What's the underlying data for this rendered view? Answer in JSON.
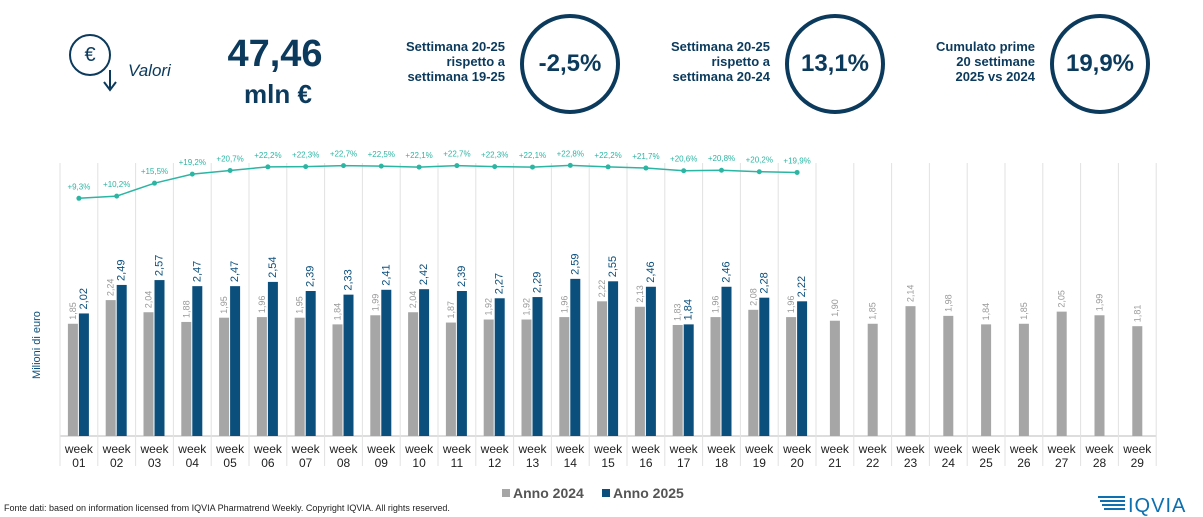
{
  "header": {
    "icon_label": "Valori",
    "total_value": "47,46",
    "total_unit": "mln €"
  },
  "kpis": [
    {
      "label_lines": [
        "Settimana 20-25",
        "rispetto a",
        "settimana 19-25"
      ],
      "value": "-2,5%"
    },
    {
      "label_lines": [
        "Settimana 20-25",
        "rispetto a",
        "settimana 20-24"
      ],
      "value": "13,1%"
    },
    {
      "label_lines": [
        "Cumulato prime",
        "20 settimane",
        "2025 vs 2024"
      ],
      "value": "19,9%"
    }
  ],
  "chart_data": {
    "type": "bar",
    "ylabel": "Milioni di euro",
    "categories": [
      "week 01",
      "week 02",
      "week 03",
      "week 04",
      "week 05",
      "week 06",
      "week 07",
      "week 08",
      "week 09",
      "week 10",
      "week 11",
      "week 12",
      "week 13",
      "week 14",
      "week 15",
      "week 16",
      "week 17",
      "week 18",
      "week 19",
      "week 20",
      "week 21",
      "week 22",
      "week 23",
      "week 24",
      "week 25",
      "week 26",
      "week 27",
      "week 28",
      "week 29"
    ],
    "ylim": [
      0,
      4.5
    ],
    "y2lim": [
      0,
      25
    ],
    "series": [
      {
        "name": "Anno 2024",
        "color": "#a6a6a6",
        "values": [
          1.85,
          2.24,
          2.04,
          1.88,
          1.95,
          1.96,
          1.95,
          1.84,
          1.99,
          2.04,
          1.87,
          1.92,
          1.92,
          1.96,
          2.22,
          2.13,
          1.83,
          1.96,
          2.08,
          1.96,
          1.9,
          1.85,
          2.14,
          1.98,
          1.84,
          1.85,
          2.05,
          1.99,
          1.81
        ],
        "value_labels": [
          "1,85",
          "2,24",
          "2,04",
          "1,88",
          "1,95",
          "1,96",
          "1,95",
          "1,84",
          "1,99",
          "2,04",
          "1,87",
          "1,92",
          "1,92",
          "1,96",
          "2,22",
          "2,13",
          "1,83",
          "1,96",
          "2,08",
          "1,96",
          "1,90",
          "1,85",
          "2,14",
          "1,98",
          "1,84",
          "1,85",
          "2,05",
          "1,99",
          "1,81"
        ]
      },
      {
        "name": "Anno 2025",
        "color": "#0b4f7c",
        "values": [
          2.02,
          2.49,
          2.57,
          2.47,
          2.47,
          2.54,
          2.39,
          2.33,
          2.41,
          2.42,
          2.39,
          2.27,
          2.29,
          2.59,
          2.55,
          2.46,
          1.84,
          2.46,
          2.28,
          2.22,
          null,
          null,
          null,
          null,
          null,
          null,
          null,
          null,
          null
        ],
        "value_labels": [
          "2,02",
          "2,49",
          "2,57",
          "2,47",
          "2,47",
          "2,54",
          "2,39",
          "2,33",
          "2,41",
          "2,42",
          "2,39",
          "2,27",
          "2,29",
          "2,59",
          "2,55",
          "2,46",
          "1,84",
          "2,46",
          "2,28",
          "2,22",
          null,
          null,
          null,
          null,
          null,
          null,
          null,
          null,
          null
        ]
      },
      {
        "type": "line",
        "axis": "y2",
        "color": "#2bb5a3",
        "values": [
          9.3,
          10.2,
          15.5,
          19.2,
          20.7,
          22.2,
          22.3,
          22.7,
          22.5,
          22.1,
          22.7,
          22.3,
          22.1,
          22.8,
          22.2,
          21.7,
          20.6,
          20.8,
          20.2,
          19.9,
          null,
          null,
          null,
          null,
          null,
          null,
          null,
          null,
          null
        ],
        "value_labels": [
          "+9,3%",
          "+10,2%",
          "+15,5%",
          "+19,2%",
          "+20,7%",
          "+22,2%",
          "+22,3%",
          "+22,7%",
          "+22,5%",
          "+22,1%",
          "+22,7%",
          "+22,3%",
          "+22,1%",
          "+22,8%",
          "+22,2%",
          "+21,7%",
          "+20,6%",
          "+20,8%",
          "+20,2%",
          "+19,9%",
          null,
          null,
          null,
          null,
          null,
          null,
          null,
          null,
          null
        ]
      }
    ]
  },
  "footer": {
    "source": "Fonte dati: based on information licensed from IQVIA Pharmatrend Weekly. Copyright IQVIA. All rights reserved.",
    "logo": "IQVIA"
  }
}
